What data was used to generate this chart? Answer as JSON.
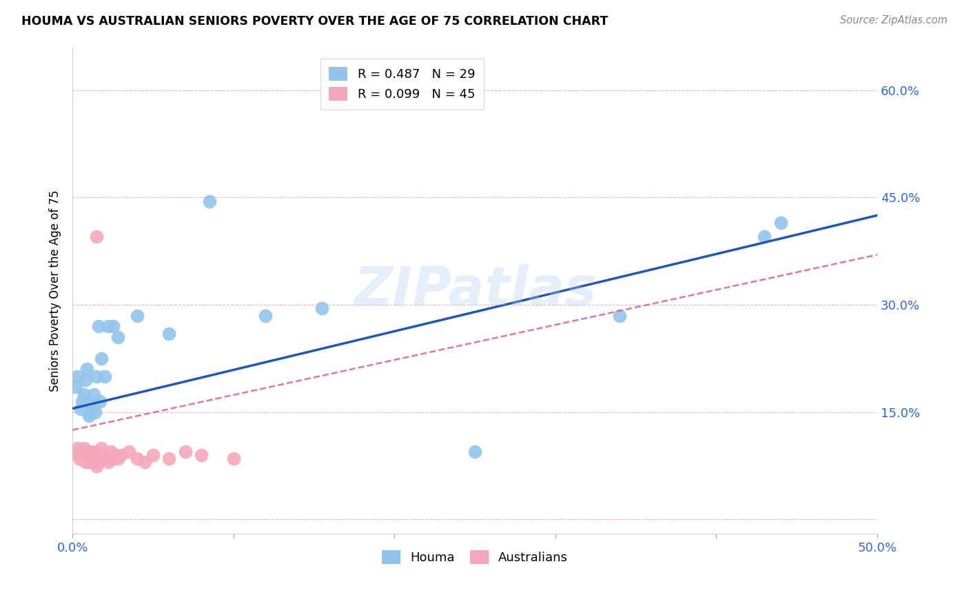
{
  "title": "HOUMA VS AUSTRALIAN SENIORS POVERTY OVER THE AGE OF 75 CORRELATION CHART",
  "source": "Source: ZipAtlas.com",
  "ylabel": "Seniors Poverty Over the Age of 75",
  "xlim": [
    0.0,
    0.5
  ],
  "ylim": [
    -0.02,
    0.66
  ],
  "xticks": [
    0.0,
    0.1,
    0.2,
    0.3,
    0.4,
    0.5
  ],
  "yticks": [
    0.0,
    0.15,
    0.3,
    0.45,
    0.6
  ],
  "ytick_labels_right": [
    "",
    "15.0%",
    "30.0%",
    "45.0%",
    "60.0%"
  ],
  "xtick_labels": [
    "0.0%",
    "",
    "",
    "",
    "",
    "50.0%"
  ],
  "houma_R": 0.487,
  "houma_N": 29,
  "aus_R": 0.099,
  "aus_N": 45,
  "houma_color": "#92C4EC",
  "aus_color": "#F5A8BC",
  "houma_line_color": "#2255BB",
  "aus_line_color": "#E06080",
  "watermark": "ZIPatlas",
  "houma_x": [
    0.002,
    0.003,
    0.005,
    0.006,
    0.007,
    0.008,
    0.009,
    0.01,
    0.011,
    0.012,
    0.013,
    0.014,
    0.015,
    0.016,
    0.017,
    0.018,
    0.02,
    0.022,
    0.025,
    0.028,
    0.04,
    0.06,
    0.085,
    0.12,
    0.155,
    0.25,
    0.34,
    0.43,
    0.44
  ],
  "houma_y": [
    0.185,
    0.2,
    0.155,
    0.165,
    0.175,
    0.195,
    0.21,
    0.145,
    0.15,
    0.16,
    0.175,
    0.15,
    0.2,
    0.27,
    0.165,
    0.225,
    0.2,
    0.27,
    0.27,
    0.255,
    0.285,
    0.26,
    0.445,
    0.285,
    0.295,
    0.095,
    0.285,
    0.395,
    0.415
  ],
  "aus_x": [
    0.002,
    0.003,
    0.004,
    0.005,
    0.006,
    0.006,
    0.007,
    0.007,
    0.008,
    0.008,
    0.009,
    0.009,
    0.01,
    0.01,
    0.011,
    0.011,
    0.012,
    0.012,
    0.013,
    0.013,
    0.014,
    0.014,
    0.015,
    0.015,
    0.016,
    0.016,
    0.017,
    0.018,
    0.019,
    0.02,
    0.022,
    0.024,
    0.025,
    0.026,
    0.028,
    0.03,
    0.035,
    0.04,
    0.045,
    0.05,
    0.06,
    0.07,
    0.08,
    0.1,
    0.015
  ],
  "aus_y": [
    0.095,
    0.1,
    0.085,
    0.09,
    0.09,
    0.095,
    0.085,
    0.1,
    0.08,
    0.095,
    0.08,
    0.09,
    0.085,
    0.095,
    0.08,
    0.09,
    0.085,
    0.095,
    0.085,
    0.095,
    0.08,
    0.09,
    0.075,
    0.085,
    0.08,
    0.09,
    0.09,
    0.1,
    0.085,
    0.09,
    0.08,
    0.095,
    0.085,
    0.09,
    0.085,
    0.09,
    0.095,
    0.085,
    0.08,
    0.09,
    0.085,
    0.095,
    0.09,
    0.085,
    0.395
  ],
  "houma_line_x": [
    0.0,
    0.5
  ],
  "houma_line_y": [
    0.155,
    0.425
  ],
  "aus_line_x": [
    0.0,
    0.5
  ],
  "aus_line_y": [
    0.125,
    0.37
  ]
}
